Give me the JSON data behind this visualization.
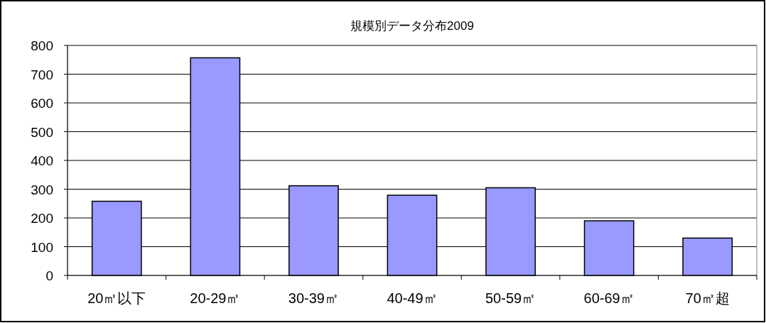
{
  "chart_data": {
    "type": "bar",
    "title": "規模別データ分布2009",
    "categories": [
      "20㎡以下",
      "20-29㎡",
      "30-39㎡",
      "40-49㎡",
      "50-59㎡",
      "60-69㎡",
      "70㎡超"
    ],
    "values": [
      258,
      757,
      312,
      279,
      305,
      190,
      130
    ],
    "color": "#9999ff",
    "ylim": [
      0,
      800
    ],
    "yticks": [
      0,
      100,
      200,
      300,
      400,
      500,
      600,
      700,
      800
    ],
    "grid": "y"
  }
}
